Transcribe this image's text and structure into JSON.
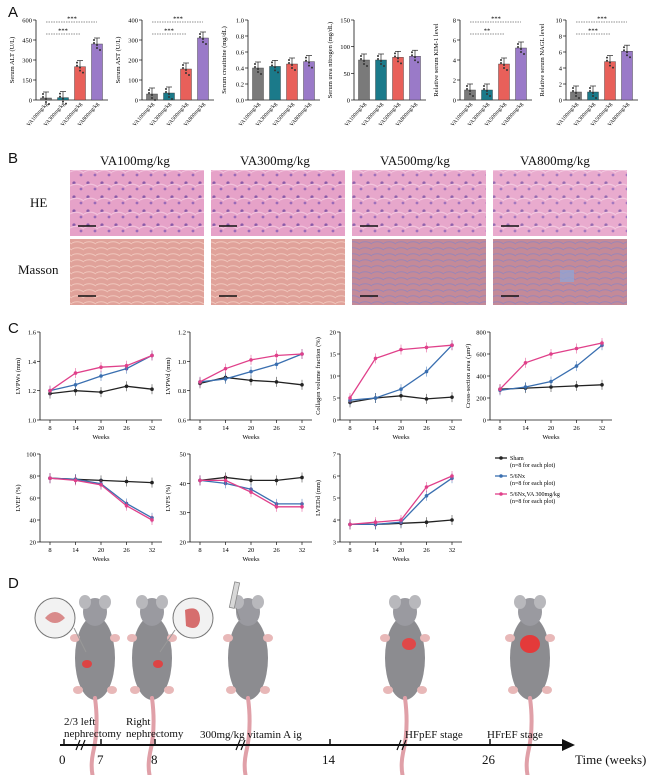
{
  "panels": {
    "a": "A",
    "b": "B",
    "c": "C",
    "d": "D"
  },
  "colors": {
    "g1": "#7a7a7a",
    "g2": "#1b7a8a",
    "g3": "#e8605a",
    "g4": "#9a7ac8",
    "sham": "#222222",
    "snx": "#3a6fb0",
    "snxva": "#e0408a"
  },
  "panelA": [
    {
      "ylabel": "Serum ALT (U/L)",
      "ylim": [
        0,
        600
      ],
      "ticks": [
        "0",
        "150",
        "300",
        "450",
        "600"
      ],
      "categories": [
        "VA100mg/kg",
        "VA300mg/kg",
        "VA500mg/kg",
        "VA800mg/kg"
      ],
      "values": [
        15,
        18,
        250,
        420
      ],
      "sig": [
        "***",
        "***"
      ]
    },
    {
      "ylabel": "Serum AST (U/L)",
      "ylim": [
        0,
        400
      ],
      "ticks": [
        "0",
        "100",
        "200",
        "300",
        "400"
      ],
      "categories": [
        "VA100mg/kg",
        "VA300mg/kg",
        "VA500mg/kg",
        "VA800mg/kg"
      ],
      "values": [
        30,
        35,
        155,
        310
      ],
      "sig": [
        "***",
        "***"
      ]
    },
    {
      "ylabel": "Serum creatinine (mg/dL)",
      "ylim": [
        0,
        1.0
      ],
      "ticks": [
        "0.0",
        "0.2",
        "0.4",
        "0.6",
        "0.8",
        "1.0"
      ],
      "categories": [
        "VA100mg/kg",
        "VA300mg/kg",
        "VA500mg/kg",
        "VA800mg/kg"
      ],
      "values": [
        0.4,
        0.42,
        0.45,
        0.48
      ],
      "sig": []
    },
    {
      "ylabel": "Serum urea nitrogen (mg/dL)",
      "ylim": [
        0,
        150
      ],
      "ticks": [
        "0",
        "50",
        "100",
        "150"
      ],
      "categories": [
        "VA100mg/kg",
        "VA300mg/kg",
        "VA500mg/kg",
        "VA800mg/kg"
      ],
      "values": [
        75,
        75,
        80,
        82
      ],
      "sig": []
    },
    {
      "ylabel": "Relative serum KIM-1 level",
      "ylim": [
        0,
        8
      ],
      "ticks": [
        "0",
        "2",
        "4",
        "6",
        "8"
      ],
      "categories": [
        "VA100mg/kg",
        "VA300mg/kg",
        "VA500mg/kg",
        "VA800mg/kg"
      ],
      "values": [
        1.0,
        1.0,
        3.6,
        5.2
      ],
      "sig": [
        "**",
        "***"
      ]
    },
    {
      "ylabel": "Relative serum NAGL level",
      "ylim": [
        0,
        10
      ],
      "ticks": [
        "0",
        "2",
        "4",
        "6",
        "8",
        "10"
      ],
      "categories": [
        "VA100mg/kg",
        "VA300mg/kg",
        "VA500mg/kg",
        "VA800mg/kg"
      ],
      "values": [
        1.0,
        1.0,
        4.8,
        6.1
      ],
      "sig": [
        "***",
        "***"
      ]
    }
  ],
  "panelB": {
    "columns": [
      "VA100mg/kg",
      "VA300mg/kg",
      "VA500mg/kg",
      "VA800mg/kg"
    ],
    "rows": [
      "HE",
      "Masson"
    ]
  },
  "panelC": {
    "x": [
      "8",
      "14",
      "20",
      "26",
      "32"
    ],
    "xlabel": "Weeks",
    "legend": [
      {
        "name": "Sham",
        "n": "(n=8 for each plot)"
      },
      {
        "name": "5/6Nx",
        "n": "(n=8 for each plot)"
      },
      {
        "name": "5/6Nx,VA 300mg/kg",
        "n": "(n=8 for each plot)"
      }
    ],
    "charts": [
      {
        "ylabel": "LVPWs (mm)",
        "ylim": [
          1.0,
          1.6
        ],
        "ticks": [
          "1.0",
          "1.2",
          "1.4",
          "1.6"
        ],
        "series": {
          "sham": [
            1.18,
            1.2,
            1.19,
            1.23,
            1.21
          ],
          "snx": [
            1.2,
            1.24,
            1.3,
            1.35,
            1.44
          ],
          "snxva": [
            1.2,
            1.32,
            1.36,
            1.37,
            1.44
          ]
        }
      },
      {
        "ylabel": "LVPWd (mm)",
        "ylim": [
          0.6,
          1.2
        ],
        "ticks": [
          "0.6",
          "0.8",
          "1.0",
          "1.2"
        ],
        "series": {
          "sham": [
            0.85,
            0.89,
            0.87,
            0.86,
            0.84
          ],
          "snx": [
            0.86,
            0.88,
            0.93,
            0.98,
            1.05
          ],
          "snxva": [
            0.86,
            0.95,
            1.01,
            1.04,
            1.05
          ]
        }
      },
      {
        "ylabel": "Collagen volume fraction (%)",
        "ylim": [
          0,
          20
        ],
        "ticks": [
          "0",
          "5",
          "10",
          "15",
          "20"
        ],
        "series": {
          "sham": [
            4,
            5,
            5.5,
            4.8,
            5.2
          ],
          "snx": [
            4.5,
            5,
            7,
            11,
            17
          ],
          "snxva": [
            5,
            14,
            16,
            16.5,
            17
          ]
        }
      },
      {
        "ylabel": "Cross-section area (µm²)",
        "ylim": [
          0,
          800
        ],
        "ticks": [
          "0",
          "200",
          "400",
          "600",
          "800"
        ],
        "series": {
          "sham": [
            280,
            290,
            300,
            310,
            320
          ],
          "snx": [
            270,
            300,
            350,
            490,
            680
          ],
          "snxva": [
            280,
            520,
            600,
            650,
            700
          ]
        }
      },
      {
        "ylabel": "LVEF (%)",
        "ylim": [
          20,
          100
        ],
        "ticks": [
          "20",
          "40",
          "60",
          "80",
          "100"
        ],
        "series": {
          "sham": [
            78,
            77,
            76,
            75,
            74
          ],
          "snx": [
            78,
            77,
            73,
            55,
            42
          ],
          "snxva": [
            78,
            76,
            72,
            53,
            40
          ]
        }
      },
      {
        "ylabel": "LVFS (%)",
        "ylim": [
          20,
          50
        ],
        "ticks": [
          "20",
          "30",
          "40",
          "50"
        ],
        "series": {
          "sham": [
            41,
            42,
            41,
            41,
            42
          ],
          "snx": [
            41,
            40,
            38,
            33,
            33
          ],
          "snxva": [
            41,
            41,
            37,
            32,
            32
          ]
        }
      },
      {
        "ylabel": "LVEDd (mm)",
        "ylim": [
          3,
          7
        ],
        "ticks": [
          "3",
          "4",
          "5",
          "6",
          "7"
        ],
        "series": {
          "sham": [
            3.8,
            3.8,
            3.85,
            3.9,
            4.0
          ],
          "snx": [
            3.8,
            3.8,
            3.9,
            5.1,
            5.9
          ],
          "snxva": [
            3.8,
            3.9,
            4.0,
            5.5,
            6.0
          ]
        }
      }
    ]
  },
  "panelD": {
    "ticks": [
      "0",
      "7",
      "8",
      "14",
      "26"
    ],
    "xlabel": "Time (weeks)",
    "events": [
      "2/3 left\nnephrectomy",
      "Right\nnephrectomy",
      "300mg/kg vitamin A ig",
      "HFpEF stage",
      "HFrEF stage"
    ]
  }
}
